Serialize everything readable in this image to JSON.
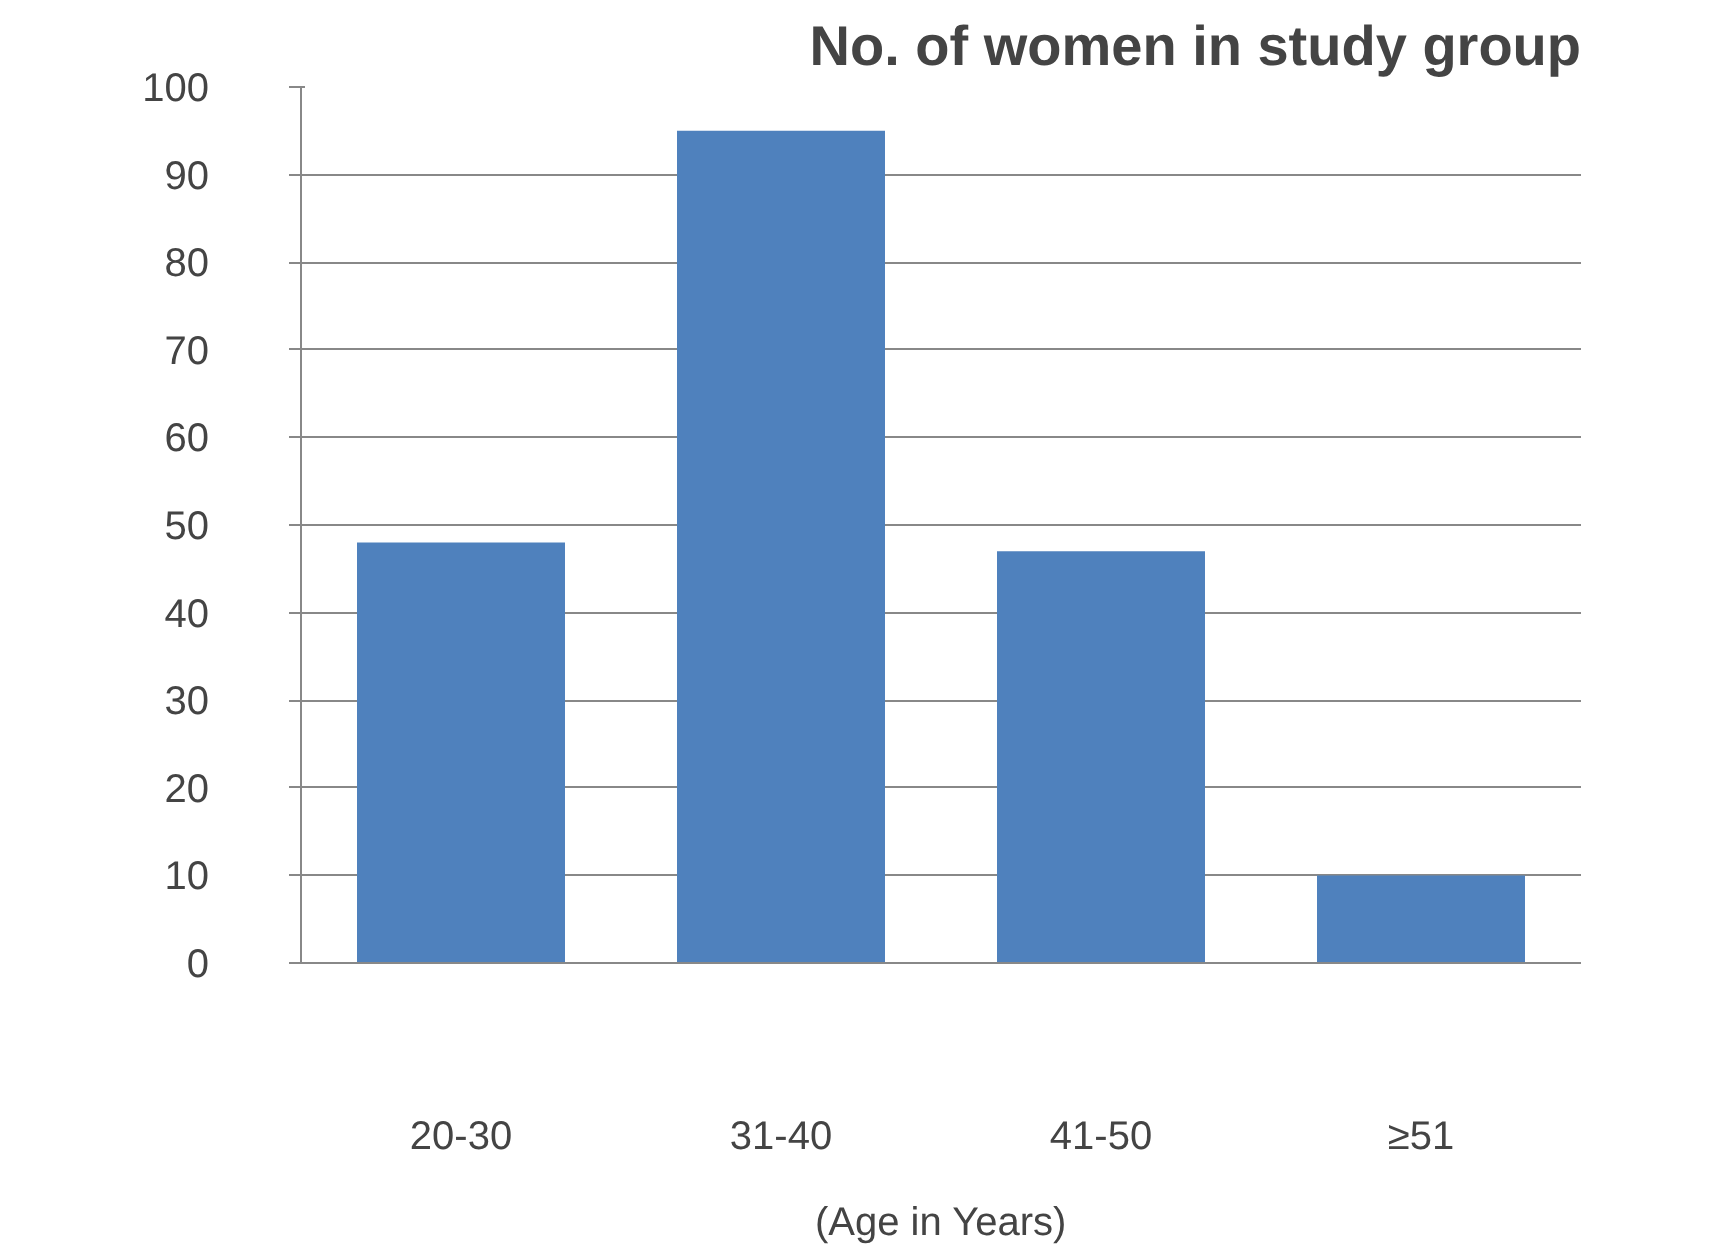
{
  "chart_data": {
    "type": "bar",
    "title": "No. of women in study group",
    "xlabel": "(Age in Years)",
    "categories": [
      "20-30",
      "31-40",
      "41-50",
      "≥51"
    ],
    "values": [
      48,
      95,
      47,
      10
    ],
    "color": "#4f81bd",
    "ylim": [
      0,
      100
    ],
    "yticks": [
      0,
      10,
      20,
      30,
      40,
      50,
      60,
      70,
      80,
      90,
      100
    ],
    "grid": "y"
  }
}
